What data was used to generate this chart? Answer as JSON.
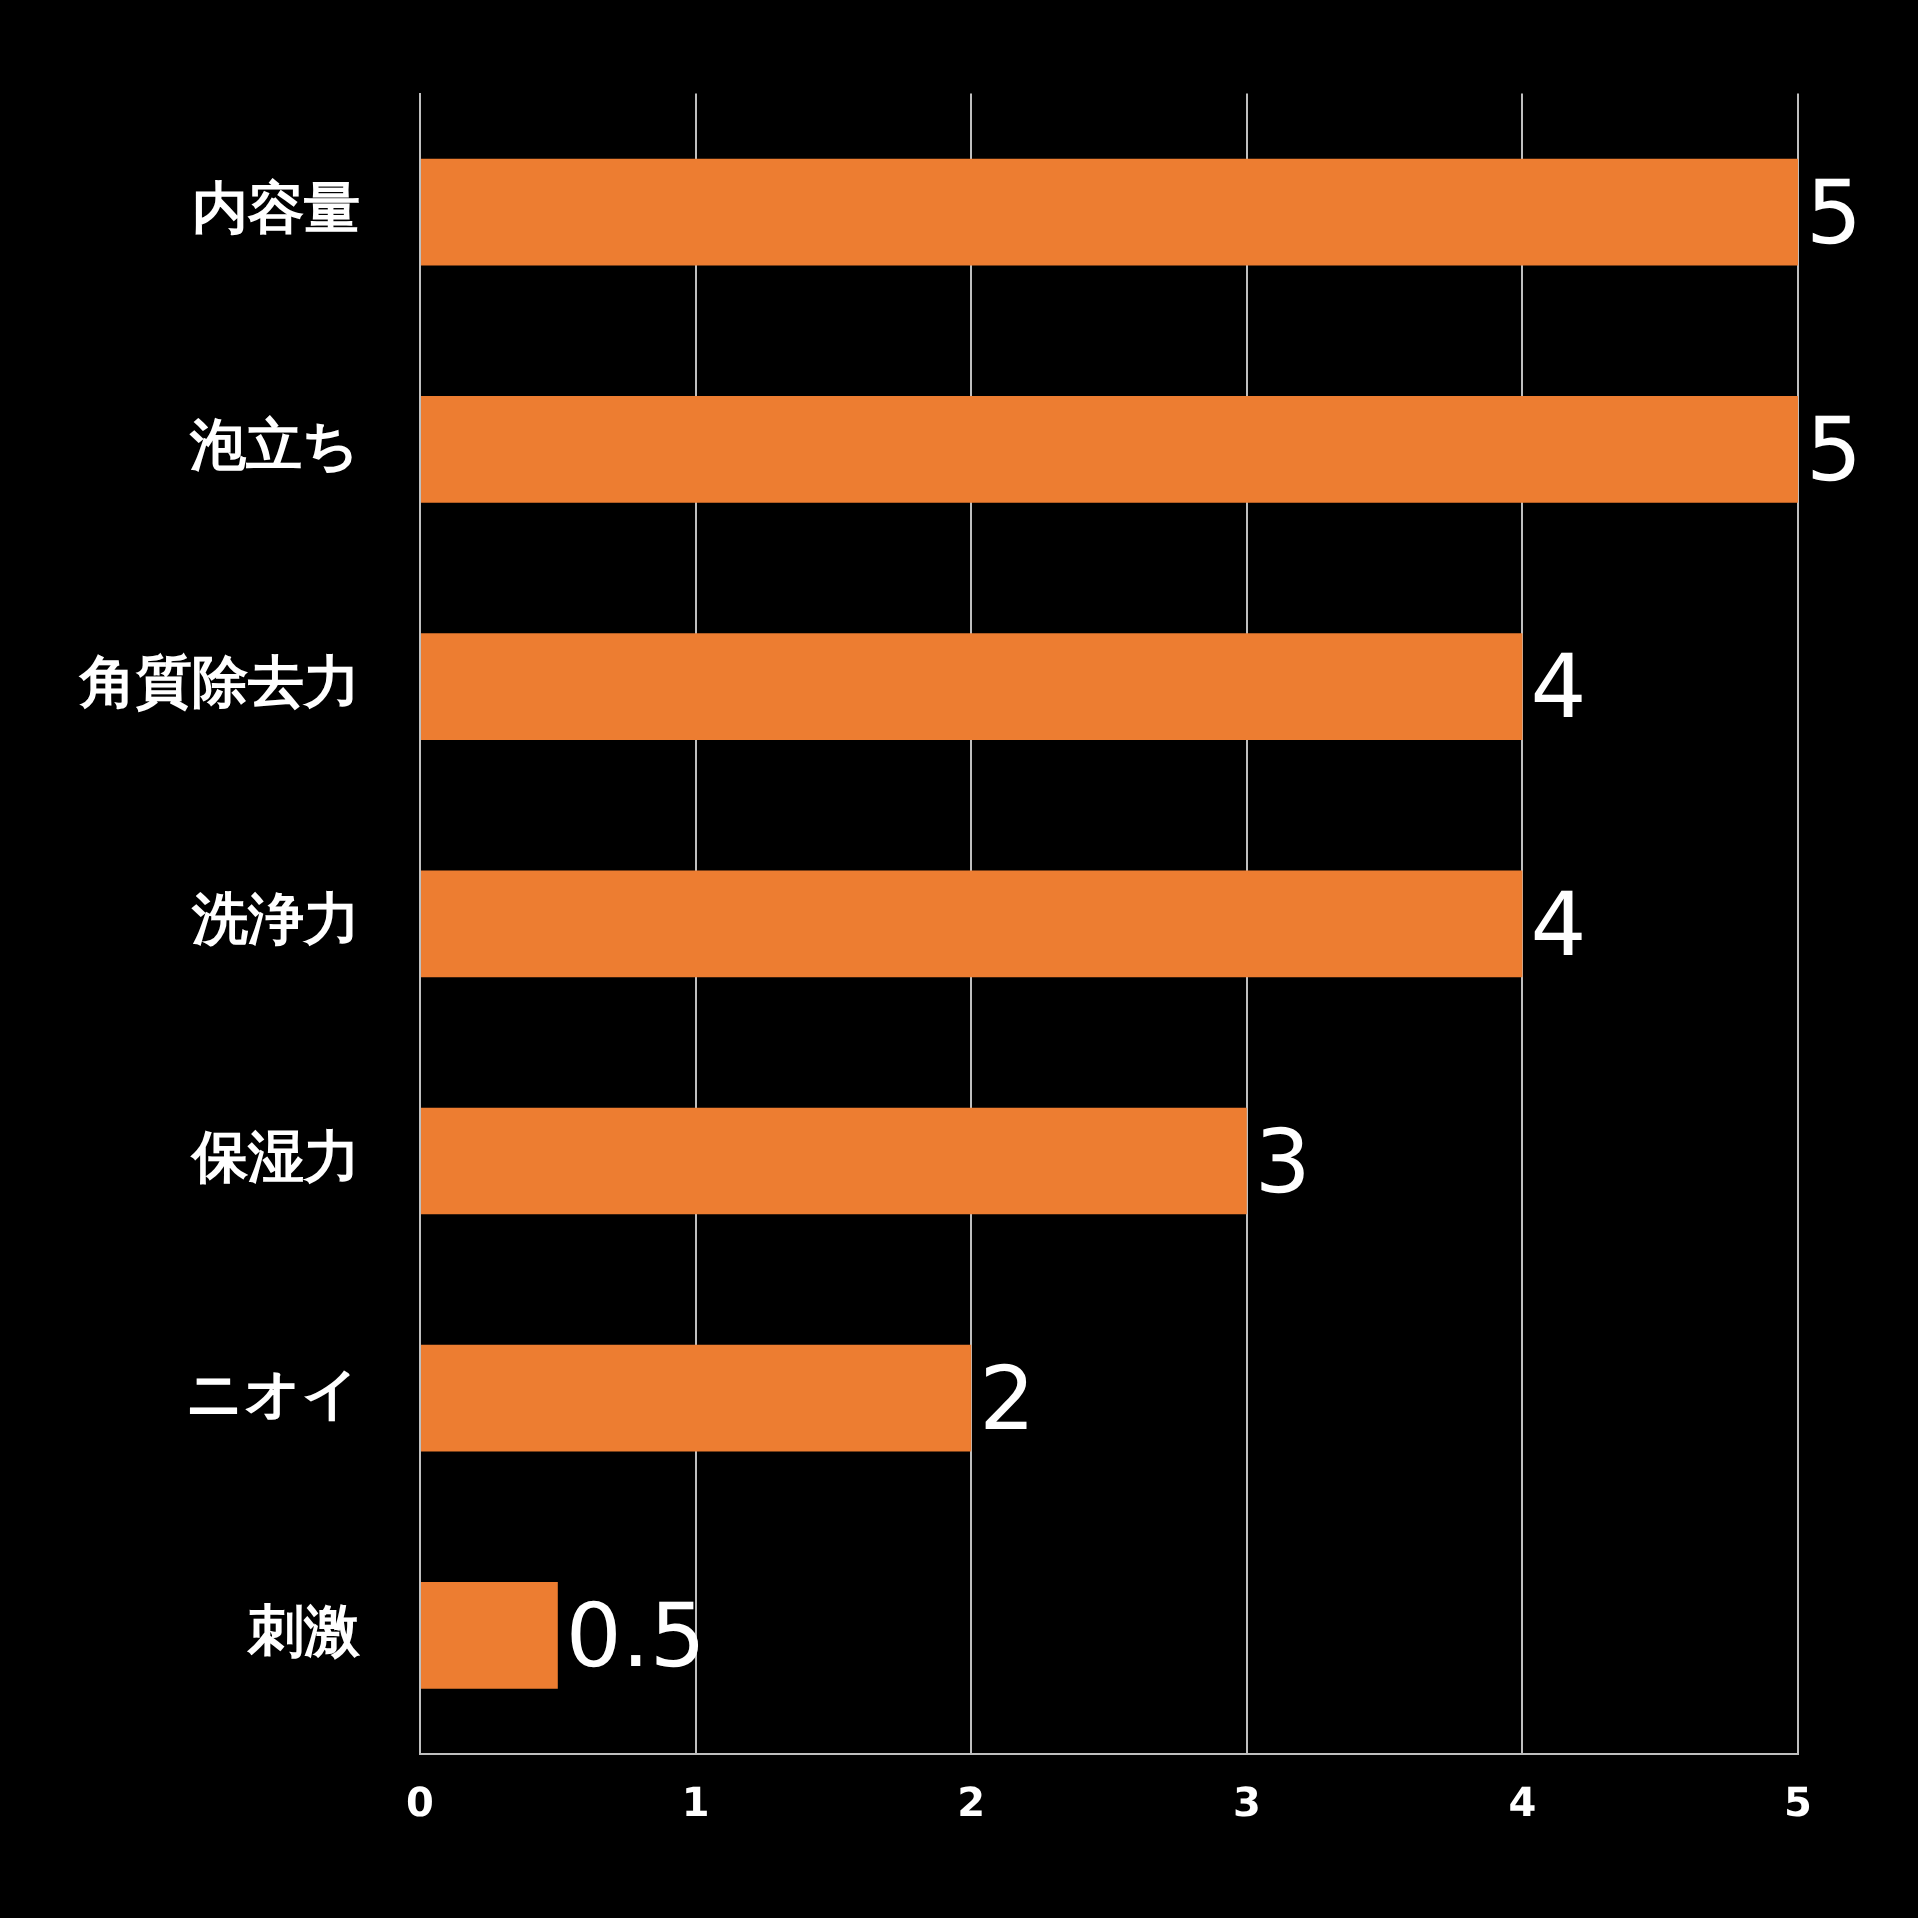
{
  "chart_data": {
    "type": "bar",
    "orientation": "horizontal",
    "categories": [
      "内容量",
      "泡立ち",
      "角質除去力",
      "洗浄力",
      "保湿力",
      "ニオイ",
      "刺激"
    ],
    "values": [
      5,
      5,
      4,
      4,
      3,
      2,
      0.5
    ],
    "color": "#ed7d31",
    "xlim": [
      0,
      5
    ],
    "xticks": [
      0,
      1,
      2,
      3,
      4,
      5
    ],
    "grid": "x",
    "data_labels": true
  }
}
